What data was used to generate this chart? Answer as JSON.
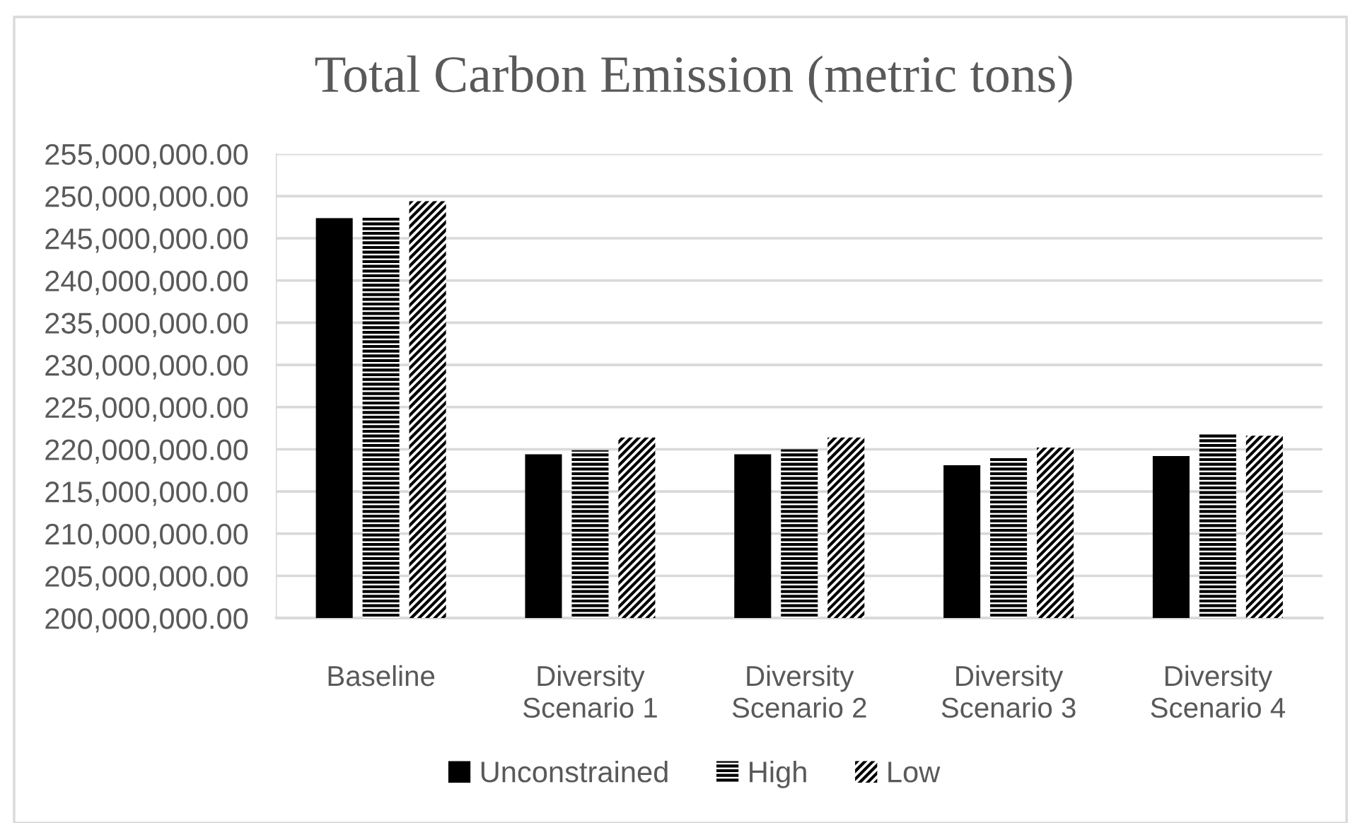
{
  "chart_data": {
    "type": "bar",
    "title": "Total Carbon Emission (metric tons)",
    "categories": [
      "Baseline",
      "Diversity\nScenario 1",
      "Diversity\nScenario 2",
      "Diversity\nScenario 3",
      "Diversity\nScenario 4"
    ],
    "series": [
      {
        "name": "Unconstrained",
        "color": "#000000",
        "values": [
          247400000,
          219400000,
          219400000,
          218100000,
          219200000
        ]
      },
      {
        "name": "High",
        "color": "#000000",
        "values": [
          247500000,
          219900000,
          220000000,
          219000000,
          221800000
        ]
      },
      {
        "name": "Low",
        "color": "#000000",
        "values": [
          249400000,
          221400000,
          221400000,
          220200000,
          221600000
        ]
      }
    ],
    "ylim": [
      200000000,
      255000000
    ],
    "yticks": [
      {
        "value": 200000000,
        "label": "200,000,000.00"
      },
      {
        "value": 205000000,
        "label": "205,000,000.00"
      },
      {
        "value": 210000000,
        "label": "210,000,000.00"
      },
      {
        "value": 215000000,
        "label": "215,000,000.00"
      },
      {
        "value": 220000000,
        "label": "220,000,000.00"
      },
      {
        "value": 225000000,
        "label": "225,000,000.00"
      },
      {
        "value": 230000000,
        "label": "230,000,000.00"
      },
      {
        "value": 235000000,
        "label": "235,000,000.00"
      },
      {
        "value": 240000000,
        "label": "240,000,000.00"
      },
      {
        "value": 245000000,
        "label": "245,000,000.00"
      },
      {
        "value": 250000000,
        "label": "250,000,000.00"
      },
      {
        "value": 255000000,
        "label": "255,000,000.00"
      }
    ],
    "grid": "y",
    "legend": "bottom"
  }
}
